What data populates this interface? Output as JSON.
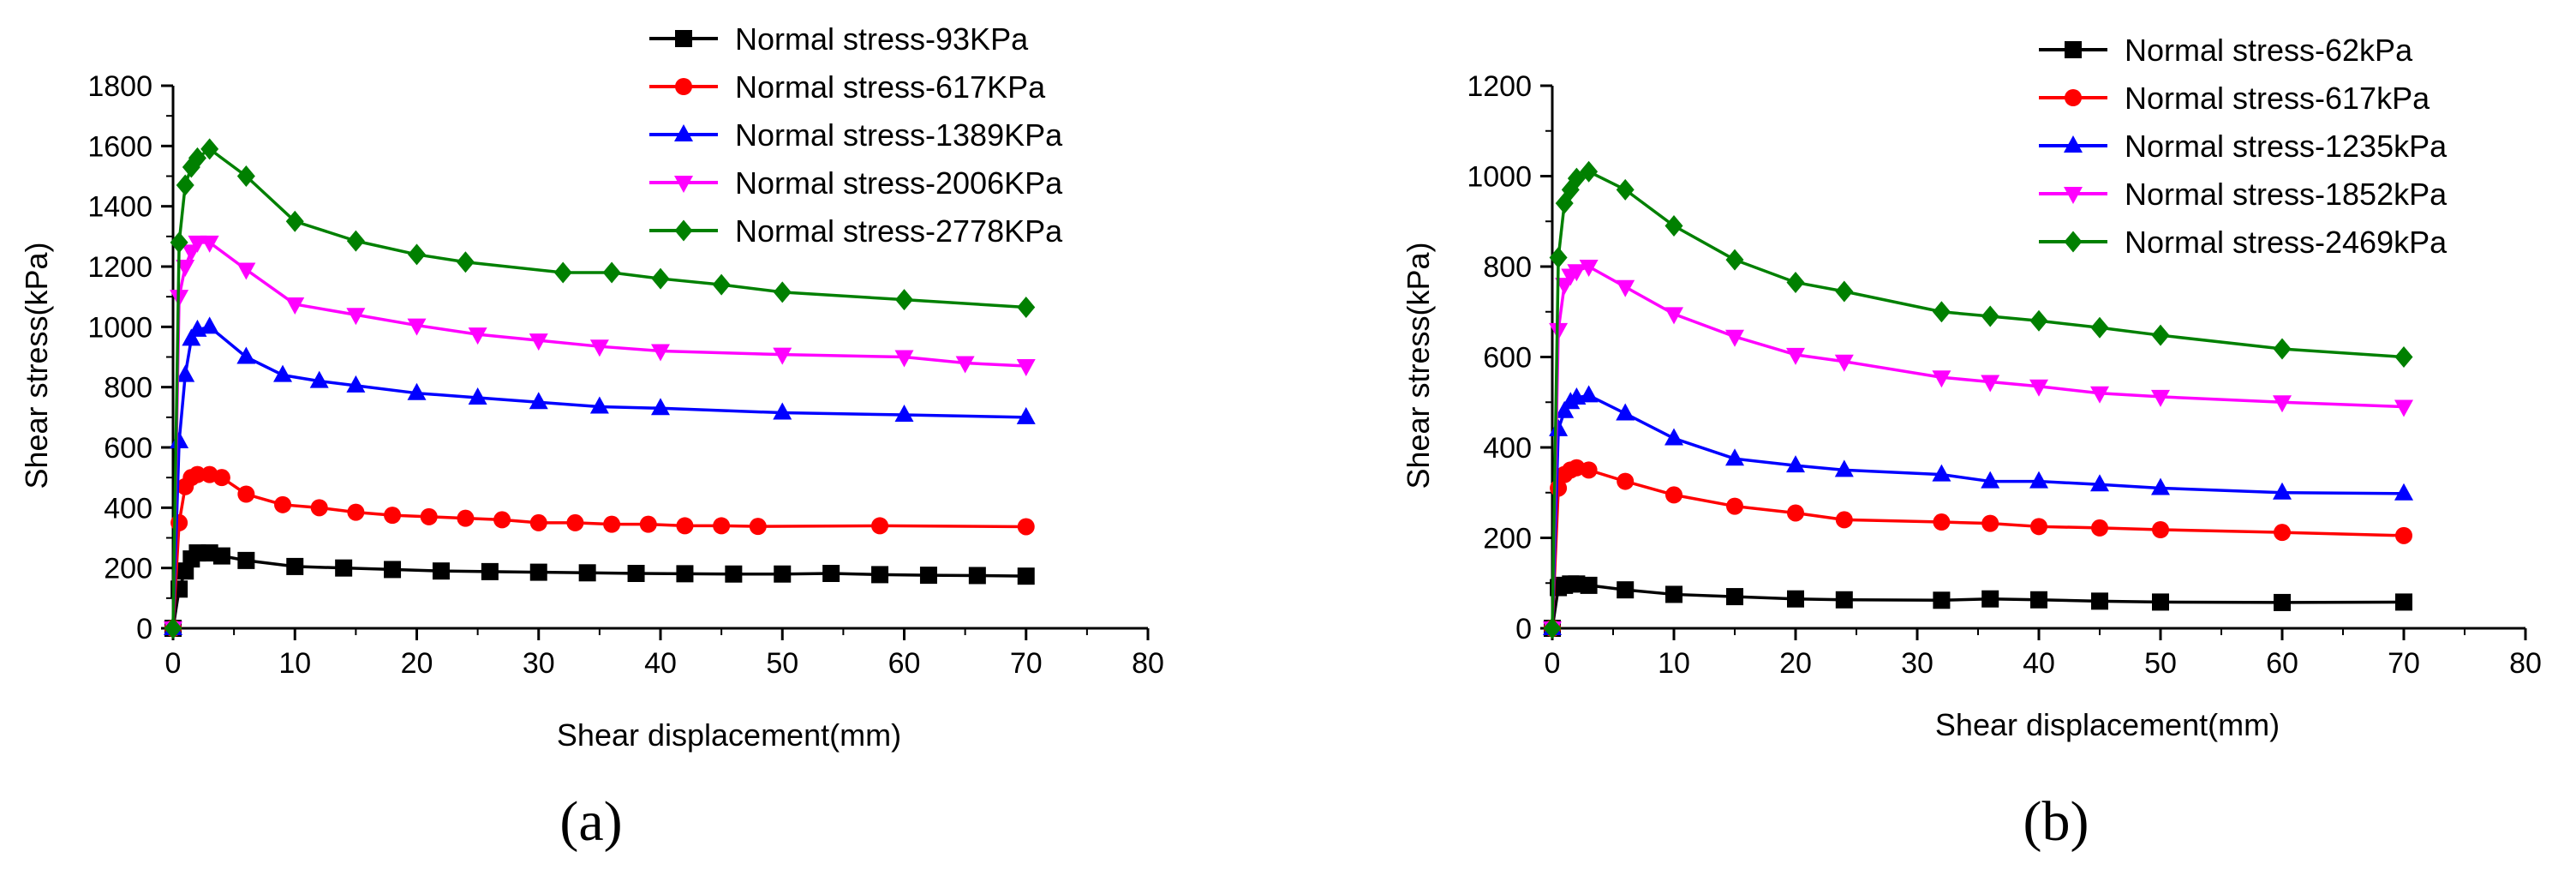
{
  "chart_data": [
    {
      "type": "line",
      "panel_label": "(a)",
      "xlabel": "Shear displacement(mm)",
      "ylabel": "Shear stress(kPa)",
      "xlim": [
        0,
        80
      ],
      "ylim": [
        0,
        1800
      ],
      "xticks": [
        0,
        10,
        20,
        30,
        40,
        50,
        60,
        70,
        80
      ],
      "yticks": [
        0,
        200,
        400,
        600,
        800,
        1000,
        1200,
        1400,
        1600,
        1800
      ],
      "grid": false,
      "legend_position": "top-right",
      "series": [
        {
          "name": "Normal stress-93KPa",
          "color": "#000000",
          "marker": "square",
          "x": [
            0,
            0.5,
            1,
            1.5,
            2,
            3,
            4,
            6,
            10,
            14,
            18,
            22,
            26,
            30,
            34,
            38,
            42,
            46,
            50,
            54,
            58,
            62,
            66,
            70
          ],
          "y": [
            0,
            130,
            190,
            230,
            250,
            250,
            240,
            225,
            205,
            200,
            195,
            190,
            188,
            186,
            184,
            182,
            181,
            180,
            180,
            182,
            178,
            176,
            175,
            173
          ]
        },
        {
          "name": "Normal stress-617KPa",
          "color": "#ff0000",
          "marker": "circle",
          "x": [
            0,
            0.5,
            1,
            1.5,
            2,
            3,
            4,
            6,
            9,
            12,
            15,
            18,
            21,
            24,
            27,
            30,
            33,
            36,
            39,
            42,
            45,
            48,
            58,
            70
          ],
          "y": [
            0,
            350,
            470,
            500,
            510,
            510,
            500,
            445,
            410,
            400,
            385,
            375,
            370,
            365,
            360,
            350,
            350,
            345,
            345,
            340,
            340,
            338,
            340,
            337
          ]
        },
        {
          "name": "Normal stress-1389KPa",
          "color": "#0000ff",
          "marker": "triangle-up",
          "x": [
            0,
            0.5,
            1,
            1.5,
            2,
            3,
            6,
            9,
            12,
            15,
            20,
            25,
            30,
            35,
            40,
            50,
            60,
            70
          ],
          "y": [
            0,
            620,
            840,
            960,
            990,
            1000,
            900,
            840,
            820,
            805,
            780,
            765,
            750,
            735,
            730,
            715,
            708,
            700
          ]
        },
        {
          "name": "Normal stress-2006KPa",
          "color": "#ff00ff",
          "marker": "triangle-down",
          "x": [
            0,
            0.5,
            1,
            1.5,
            2,
            3,
            6,
            10,
            15,
            20,
            25,
            30,
            35,
            40,
            50,
            60,
            65,
            70
          ],
          "y": [
            0,
            1100,
            1200,
            1250,
            1280,
            1280,
            1190,
            1075,
            1040,
            1005,
            975,
            955,
            935,
            920,
            908,
            900,
            880,
            870
          ]
        },
        {
          "name": "Normal stress-2778KPa",
          "color": "#008000",
          "marker": "diamond",
          "x": [
            0,
            0.5,
            1,
            1.5,
            2,
            3,
            6,
            10,
            15,
            20,
            24,
            32,
            36,
            40,
            45,
            50,
            60,
            70
          ],
          "y": [
            0,
            1280,
            1470,
            1530,
            1560,
            1590,
            1500,
            1350,
            1285,
            1240,
            1215,
            1180,
            1180,
            1160,
            1140,
            1115,
            1090,
            1065
          ]
        }
      ]
    },
    {
      "type": "line",
      "panel_label": "(b)",
      "xlabel": "Shear displacement(mm)",
      "ylabel": "Shear stress(kPa)",
      "xlim": [
        0,
        80
      ],
      "ylim": [
        0,
        1200
      ],
      "xticks": [
        0,
        10,
        20,
        30,
        40,
        50,
        60,
        70,
        80
      ],
      "yticks": [
        0,
        200,
        400,
        600,
        800,
        1000,
        1200
      ],
      "grid": false,
      "legend_position": "top-right",
      "series": [
        {
          "name": "Normal stress-62kPa",
          "color": "#000000",
          "marker": "square",
          "x": [
            0,
            0.5,
            1,
            1.5,
            2,
            3,
            6,
            10,
            15,
            20,
            24,
            32,
            36,
            40,
            45,
            50,
            60,
            70
          ],
          "y": [
            0,
            90,
            95,
            98,
            98,
            95,
            85,
            75,
            70,
            65,
            63,
            62,
            65,
            63,
            60,
            58,
            57,
            58
          ]
        },
        {
          "name": "Normal stress-617kPa",
          "color": "#ff0000",
          "marker": "circle",
          "x": [
            0,
            0.5,
            1,
            1.5,
            2,
            3,
            6,
            10,
            15,
            20,
            24,
            32,
            36,
            40,
            45,
            50,
            60,
            70
          ],
          "y": [
            0,
            310,
            340,
            350,
            355,
            350,
            325,
            295,
            270,
            255,
            240,
            235,
            232,
            225,
            222,
            218,
            212,
            205
          ]
        },
        {
          "name": "Normal stress-1235kPa",
          "color": "#0000ff",
          "marker": "triangle-up",
          "x": [
            0,
            0.5,
            1,
            1.5,
            2,
            3,
            6,
            10,
            15,
            20,
            24,
            32,
            36,
            40,
            45,
            50,
            60,
            70
          ],
          "y": [
            0,
            440,
            480,
            500,
            510,
            515,
            475,
            420,
            375,
            360,
            350,
            340,
            325,
            325,
            318,
            310,
            300,
            298
          ]
        },
        {
          "name": "Normal stress-1852kPa",
          "color": "#ff00ff",
          "marker": "triangle-down",
          "x": [
            0,
            0.5,
            1,
            1.5,
            2,
            3,
            6,
            10,
            15,
            20,
            24,
            32,
            36,
            40,
            45,
            50,
            60,
            70
          ],
          "y": [
            0,
            660,
            760,
            780,
            790,
            800,
            755,
            695,
            645,
            605,
            590,
            555,
            545,
            535,
            520,
            512,
            500,
            490
          ]
        },
        {
          "name": "Normal stress-2469kPa",
          "color": "#008000",
          "marker": "diamond",
          "x": [
            0,
            0.5,
            1,
            1.5,
            2,
            3,
            6,
            10,
            15,
            20,
            24,
            32,
            36,
            40,
            45,
            50,
            60,
            70
          ],
          "y": [
            0,
            820,
            940,
            970,
            995,
            1010,
            970,
            890,
            815,
            765,
            745,
            700,
            690,
            680,
            665,
            648,
            618,
            600
          ]
        }
      ]
    }
  ]
}
